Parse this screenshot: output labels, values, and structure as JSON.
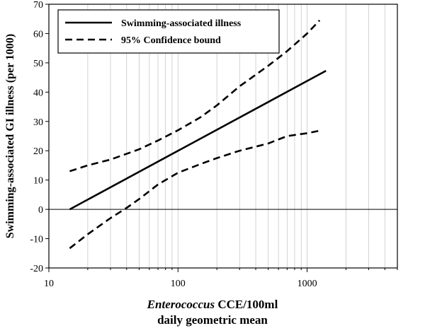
{
  "chart_data": {
    "type": "line",
    "xscale": "log",
    "xlim": [
      10,
      5000
    ],
    "ylim": [
      -20,
      70
    ],
    "xticks": [
      10,
      100,
      1000
    ],
    "xtick_labels": [
      "10",
      "100",
      "1000"
    ],
    "yticks": [
      -20,
      -10,
      0,
      10,
      20,
      30,
      40,
      50,
      60,
      70
    ],
    "ytick_labels": [
      "-20",
      "-10",
      "0",
      "10",
      "20",
      "30",
      "40",
      "50",
      "60",
      "70"
    ],
    "grid": true,
    "legend_position": "top-left",
    "xlabel_italic": "Enterococcus",
    "xlabel_rest": " CCE/100ml",
    "xlabel_line2": "daily geometric mean",
    "ylabel": "Swimming-associated GI illness (per 1000)",
    "series": [
      {
        "name": "Swimming-associated illness",
        "style": "solid",
        "x": [
          14.5,
          1400
        ],
        "y": [
          0,
          47.3
        ]
      },
      {
        "name": "95% Confidence bound",
        "style": "dashed",
        "x": [
          14.5,
          20,
          30,
          50,
          70,
          100,
          150,
          200,
          300,
          500,
          700,
          1000,
          1250
        ],
        "y": [
          13,
          15,
          17,
          20.5,
          23.5,
          27,
          31.5,
          35.5,
          42,
          49,
          54,
          60,
          64.5
        ]
      },
      {
        "name": "",
        "style": "dashed",
        "x": [
          14.5,
          20,
          30,
          40,
          50,
          70,
          100,
          150,
          200,
          300,
          500,
          700,
          1000,
          1300
        ],
        "y": [
          -13.3,
          -8.5,
          -3,
          0.5,
          3.5,
          8.5,
          12.5,
          15.5,
          17.5,
          20,
          22.5,
          25,
          26,
          27
        ]
      }
    ]
  }
}
